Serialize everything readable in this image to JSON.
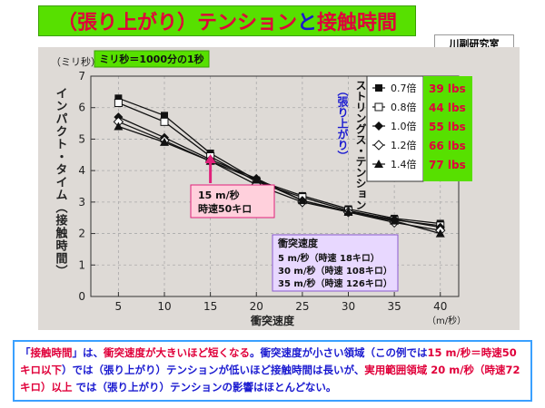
{
  "title": {
    "part1": "（張り上がり）",
    "part2": "テンション",
    "part3": "と",
    "part4": "接触時間"
  },
  "lab_label": "川副研究室",
  "note_box": "ミリ秒＝1000分の1秒",
  "ylabel": "インパクト・タイム（接触時間）",
  "y_unit": "（ミリ秒）",
  "xlabel": "衝突速度",
  "x_unit": "（m/秒）",
  "tension_title": "ストリングス・テンション",
  "tension_subtitle": "（張り上がり）",
  "callout": {
    "line1": "15 m/秒",
    "line2": "時速50キロ"
  },
  "speed_box": {
    "title": "衝突速度",
    "lines": [
      "5 m/秒（時速 18キロ）",
      "30 m/秒（時速 108キロ）",
      "35 m/秒（時速 126キロ）"
    ]
  },
  "lbs": [
    "39  lbs",
    "44  lbs",
    "55  lbs",
    "66  lbs",
    "77  lbs"
  ],
  "colors": {
    "title_bg": "#57e000",
    "lbs_bg": "#57e000",
    "lbs_text": "#e0003a",
    "callout_bg": "#ffd0dc",
    "speed_bg": "#e8d8ff",
    "chart_bg": "#dedad6"
  },
  "bottom_text": {
    "seg1": "「",
    "seg2": "接触時間",
    "seg3": "」は、",
    "seg4": "衝突速度が大きいほど短くなる",
    "seg5": "。衝突速度が小さい領域（この例では",
    "seg6": "15 m/秒＝時速50キロ以下",
    "seg7": "）では（張り上がり）テンションが低いほど接触時間は長いが、",
    "seg8": "実用範囲領域 20 m/秒（時速72キロ）以上",
    "seg9": " では（張り上がり）テンションの影響はほとんどない。"
  },
  "chart_data": {
    "type": "line",
    "x": [
      5,
      10,
      15,
      20,
      25,
      30,
      35,
      40
    ],
    "xlim": [
      2,
      42
    ],
    "ylim": [
      0,
      7
    ],
    "xticks": [
      "5",
      "10",
      "15",
      "20",
      "25",
      "30",
      "35",
      "40"
    ],
    "yticks": [
      "0",
      "1",
      "2",
      "3",
      "4",
      "5",
      "6",
      "7"
    ],
    "legend_position": "top-right",
    "series": [
      {
        "name": "0.7倍",
        "marker": "square-filled",
        "values": [
          6.3,
          5.75,
          4.55,
          3.7,
          3.2,
          2.78,
          2.48,
          2.32
        ]
      },
      {
        "name": "0.8倍",
        "marker": "square-open",
        "values": [
          6.15,
          5.55,
          4.45,
          3.65,
          3.15,
          2.73,
          2.43,
          2.25
        ]
      },
      {
        "name": "1.0倍",
        "marker": "diamond-filled",
        "values": [
          5.7,
          5.05,
          4.35,
          3.75,
          3.05,
          2.7,
          2.45,
          2.2
        ]
      },
      {
        "name": "1.2倍",
        "marker": "diamond-open",
        "values": [
          5.55,
          4.95,
          4.3,
          3.55,
          3.0,
          2.68,
          2.35,
          2.1
        ]
      },
      {
        "name": "1.4倍",
        "marker": "triangle-filled",
        "values": [
          5.4,
          4.9,
          4.3,
          3.7,
          3.05,
          2.68,
          2.4,
          2.0
        ]
      }
    ]
  }
}
